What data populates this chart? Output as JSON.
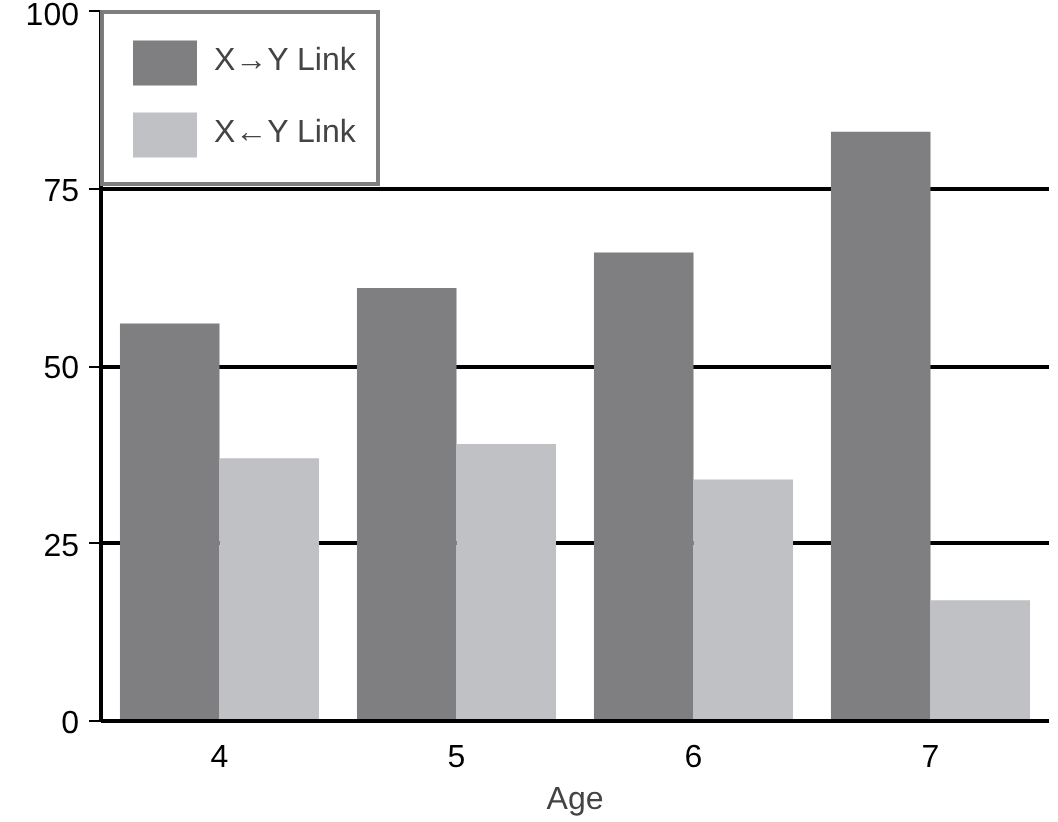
{
  "chart_data": {
    "type": "bar",
    "xlabel": "Age",
    "categories": [
      "4",
      "5",
      "6",
      "7"
    ],
    "series": [
      {
        "name": "X→Y Link",
        "color": "#7f7f82",
        "values": [
          56,
          61,
          66,
          83
        ]
      },
      {
        "name": "X←Y Link",
        "color": "#c0c1c5",
        "values": [
          37,
          39,
          34,
          17
        ]
      }
    ],
    "ylim": [
      0,
      100
    ],
    "yticks": [
      0,
      25,
      50,
      75,
      100
    ],
    "grid": "y",
    "legend": "top left"
  }
}
